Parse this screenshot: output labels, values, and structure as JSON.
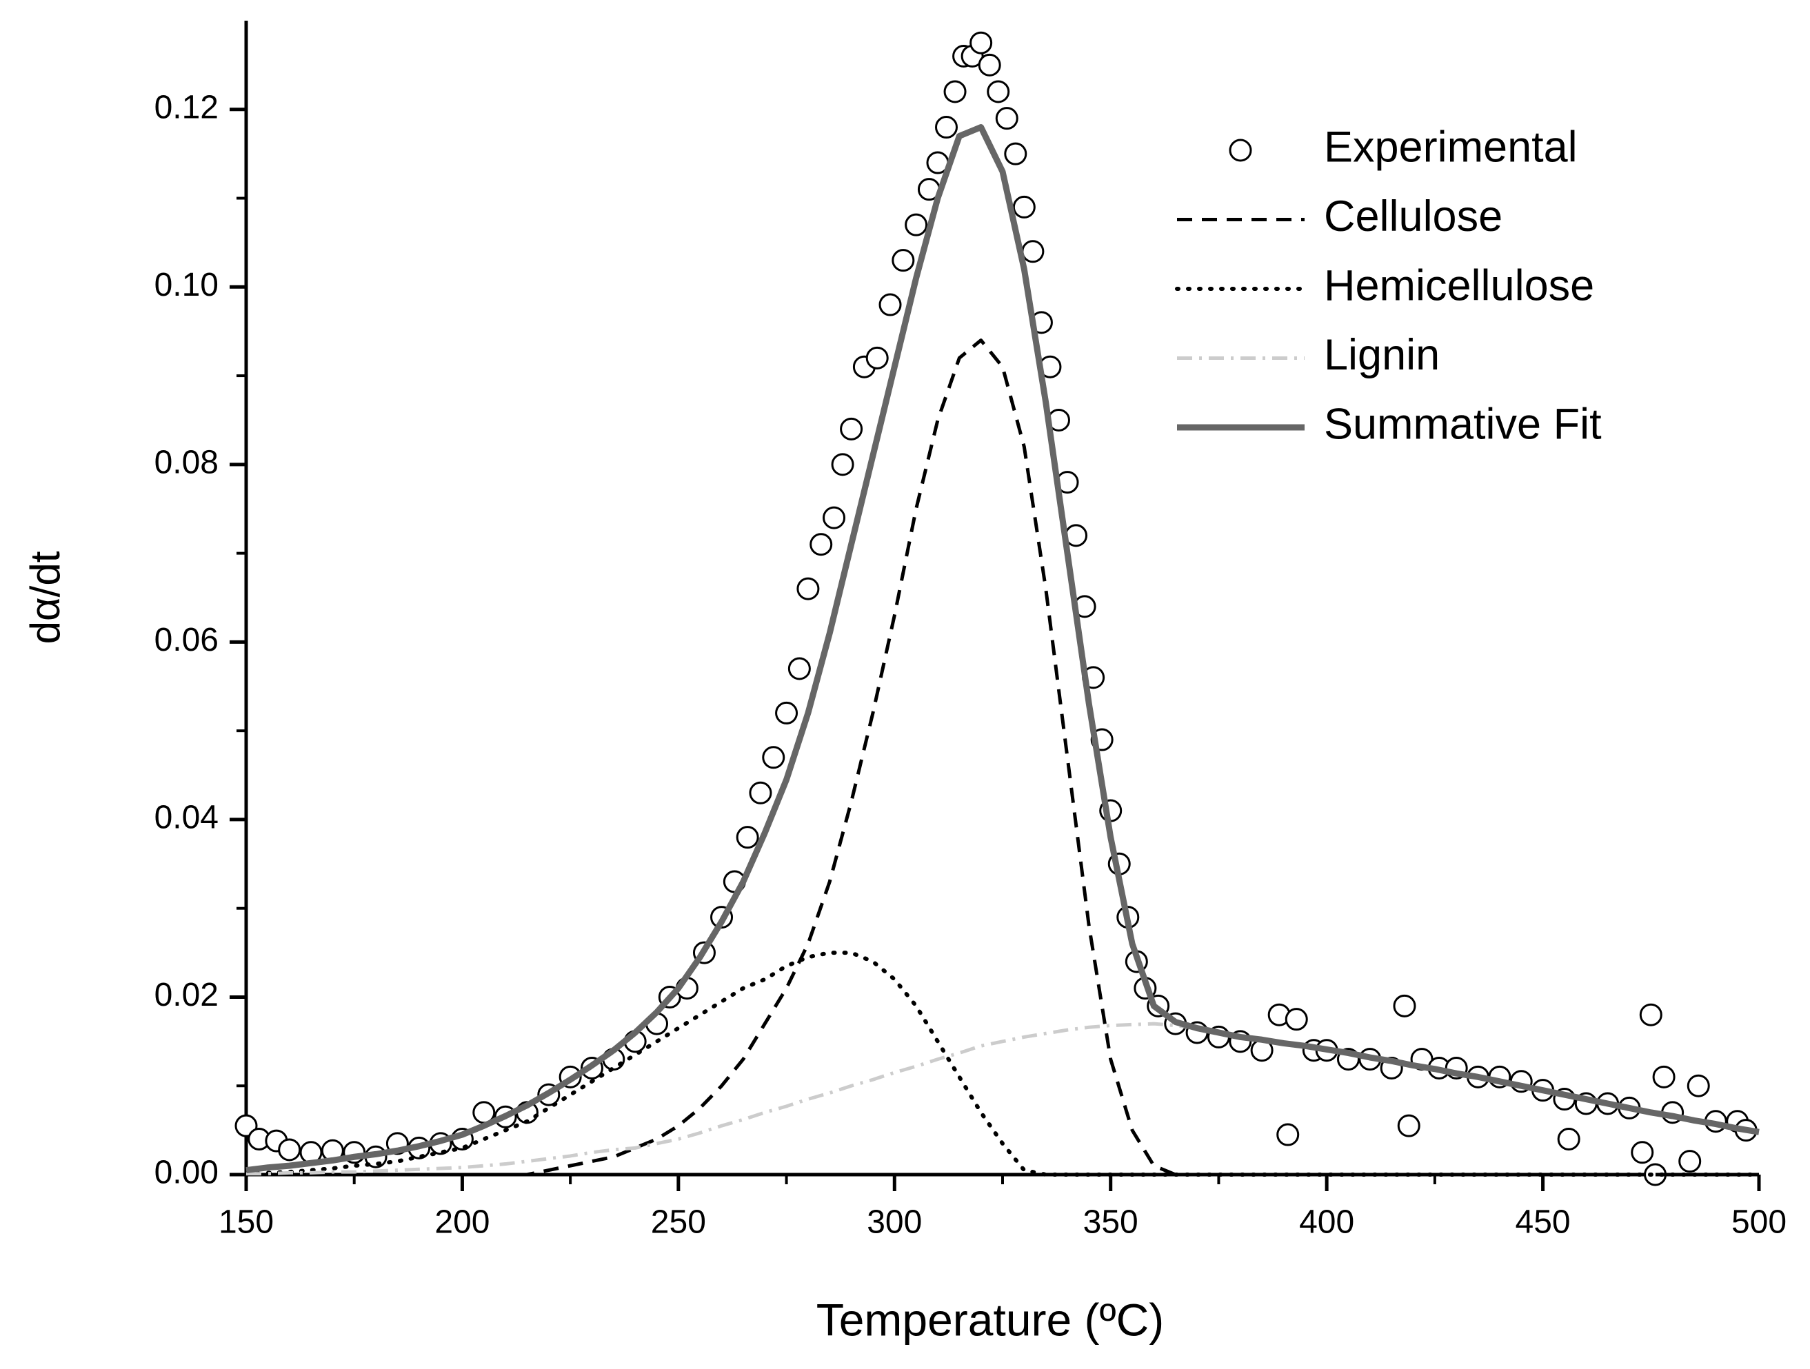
{
  "chart_data": {
    "type": "line",
    "x_label": "Temperature (ºC)",
    "y_label": "dα/dt",
    "xlim": [
      150,
      500
    ],
    "ylim": [
      0,
      0.13
    ],
    "xticks": [
      150,
      200,
      250,
      300,
      350,
      400,
      450,
      500
    ],
    "minor_xticks": [
      175,
      225,
      275,
      325,
      375,
      425,
      475
    ],
    "yticks": [
      {
        "value": 0,
        "label": "0.00"
      },
      0.02,
      0.04,
      0.06,
      0.08,
      {
        "value": 0.1,
        "label": "0.10"
      },
      0.12
    ],
    "minor_yticks": [
      0.01,
      0.03,
      0.05,
      0.07,
      0.09,
      0.11
    ],
    "legend": "upper right",
    "x": [
      150,
      155,
      160,
      165,
      170,
      175,
      180,
      185,
      190,
      195,
      200,
      205,
      210,
      215,
      220,
      225,
      230,
      235,
      240,
      245,
      250,
      255,
      260,
      265,
      270,
      275,
      280,
      285,
      290,
      295,
      300,
      305,
      310,
      315,
      320,
      325,
      330,
      335,
      340,
      345,
      350,
      355,
      360,
      365,
      370,
      375,
      380,
      385,
      390,
      395,
      400,
      405,
      410,
      415,
      420,
      425,
      430,
      435,
      440,
      445,
      450,
      455,
      460,
      465,
      470,
      475,
      480,
      485,
      490,
      495,
      500
    ],
    "series": [
      {
        "name": "Experimental",
        "style": "markers",
        "color": "#000000",
        "x": [
          150,
          153,
          157,
          160,
          165,
          170,
          175,
          180,
          185,
          190,
          195,
          200,
          205,
          210,
          215,
          220,
          225,
          230,
          235,
          240,
          245,
          248,
          252,
          256,
          260,
          263,
          266,
          269,
          272,
          275,
          278,
          280,
          283,
          286,
          288,
          290,
          293,
          296,
          299,
          302,
          305,
          308,
          310,
          312,
          314,
          316,
          318,
          320,
          322,
          324,
          326,
          328,
          330,
          332,
          334,
          336,
          338,
          340,
          342,
          344,
          346,
          348,
          350,
          352,
          354,
          356,
          358,
          361,
          365,
          370,
          375,
          380,
          385,
          389,
          391,
          393,
          397,
          400,
          405,
          410,
          415,
          418,
          419,
          422,
          426,
          430,
          435,
          440,
          445,
          450,
          455,
          456,
          460,
          465,
          470,
          473,
          475,
          476,
          478,
          480,
          484,
          486,
          490,
          495,
          497
        ],
        "values": [
          0.0055,
          0.004,
          0.0038,
          0.0028,
          0.0025,
          0.0027,
          0.0025,
          0.002,
          0.0035,
          0.003,
          0.0035,
          0.004,
          0.007,
          0.0065,
          0.007,
          0.009,
          0.011,
          0.012,
          0.013,
          0.015,
          0.017,
          0.02,
          0.021,
          0.025,
          0.029,
          0.033,
          0.038,
          0.043,
          0.047,
          0.052,
          0.057,
          0.066,
          0.071,
          0.074,
          0.08,
          0.084,
          0.091,
          0.092,
          0.098,
          0.103,
          0.107,
          0.111,
          0.114,
          0.118,
          0.122,
          0.126,
          0.126,
          0.1275,
          0.125,
          0.122,
          0.119,
          0.115,
          0.109,
          0.104,
          0.096,
          0.091,
          0.085,
          0.078,
          0.072,
          0.064,
          0.056,
          0.049,
          0.041,
          0.035,
          0.029,
          0.024,
          0.021,
          0.019,
          0.017,
          0.016,
          0.0155,
          0.015,
          0.014,
          0.018,
          0.0045,
          0.0175,
          0.014,
          0.014,
          0.013,
          0.013,
          0.012,
          0.019,
          0.0055,
          0.013,
          0.012,
          0.012,
          0.011,
          0.011,
          0.0105,
          0.0095,
          0.0085,
          0.004,
          0.008,
          0.008,
          0.0075,
          0.0025,
          0.018,
          0,
          0.011,
          0.007,
          0.0015,
          0.01,
          0.006,
          0.006,
          0.005
        ]
      },
      {
        "name": "Cellulose",
        "style": "dashed",
        "color": "#000000",
        "values": [
          0,
          0,
          0,
          0,
          0,
          0,
          0,
          0,
          0,
          0,
          0,
          0,
          0,
          0,
          0.0005,
          0.001,
          0.0015,
          0.002,
          0.003,
          0.004,
          0.0055,
          0.0075,
          0.01,
          0.013,
          0.017,
          0.021,
          0.026,
          0.033,
          0.042,
          0.052,
          0.063,
          0.075,
          0.085,
          0.092,
          0.094,
          0.091,
          0.082,
          0.066,
          0.047,
          0.028,
          0.013,
          0.005,
          0.001,
          0,
          0,
          0,
          0,
          0,
          0,
          0,
          0,
          0,
          0,
          0,
          0,
          0,
          0,
          0,
          0,
          0,
          0,
          0,
          0,
          0,
          0,
          0,
          0,
          0,
          0,
          0,
          0
        ]
      },
      {
        "name": "Hemicellulose",
        "style": "dotted",
        "color": "#000000",
        "values": [
          0,
          0.0002,
          0.0003,
          0.0005,
          0.0007,
          0.001,
          0.0012,
          0.0015,
          0.002,
          0.0025,
          0.003,
          0.004,
          0.005,
          0.006,
          0.0075,
          0.009,
          0.0105,
          0.012,
          0.0135,
          0.015,
          0.0165,
          0.018,
          0.0195,
          0.021,
          0.022,
          0.0235,
          0.0245,
          0.025,
          0.025,
          0.024,
          0.022,
          0.019,
          0.015,
          0.011,
          0.007,
          0.0035,
          0.0005,
          0,
          0,
          0,
          0,
          0,
          0,
          0,
          0,
          0,
          0,
          0,
          0,
          0,
          0,
          0,
          0,
          0,
          0,
          0,
          0,
          0,
          0,
          0,
          0,
          0,
          0,
          0,
          0,
          0,
          0,
          0,
          0,
          0,
          0
        ]
      },
      {
        "name": "Lignin",
        "style": "dashdot",
        "color": "#cccccc",
        "values": [
          0.0001,
          0.0001,
          0.0002,
          0.0002,
          0.0003,
          0.0003,
          0.0004,
          0.0005,
          0.0006,
          0.0007,
          0.0008,
          0.001,
          0.0012,
          0.0015,
          0.0018,
          0.0021,
          0.0025,
          0.0028,
          0.003,
          0.0035,
          0.004,
          0.0047,
          0.0055,
          0.0062,
          0.007,
          0.0077,
          0.0085,
          0.0092,
          0.01,
          0.0107,
          0.0115,
          0.0122,
          0.013,
          0.0137,
          0.0145,
          0.015,
          0.0155,
          0.0159,
          0.0163,
          0.0166,
          0.0168,
          0.0169,
          0.017,
          0.0168,
          0.0165,
          0.016,
          0.0155,
          0.0152,
          0.0148,
          0.0145,
          0.0141,
          0.0137,
          0.0132,
          0.0128,
          0.0123,
          0.0119,
          0.0114,
          0.011,
          0.0105,
          0.01,
          0.0095,
          0.009,
          0.0085,
          0.008,
          0.0075,
          0.007,
          0.0066,
          0.0061,
          0.0057,
          0.0052,
          0.0048
        ]
      },
      {
        "name": "Summative Fit",
        "style": "solid",
        "color": "#666666",
        "values": [
          0.0005,
          0.0008,
          0.001,
          0.0013,
          0.0016,
          0.002,
          0.0023,
          0.0027,
          0.0032,
          0.0038,
          0.0045,
          0.0055,
          0.0066,
          0.0078,
          0.0092,
          0.0107,
          0.0123,
          0.014,
          0.016,
          0.0183,
          0.021,
          0.0245,
          0.0285,
          0.033,
          0.0385,
          0.0445,
          0.052,
          0.061,
          0.071,
          0.081,
          0.091,
          0.101,
          0.11,
          0.117,
          0.118,
          0.113,
          0.102,
          0.087,
          0.07,
          0.053,
          0.038,
          0.026,
          0.019,
          0.0172,
          0.0165,
          0.016,
          0.0155,
          0.0152,
          0.0148,
          0.0145,
          0.0141,
          0.0137,
          0.0132,
          0.0128,
          0.0123,
          0.0119,
          0.0114,
          0.011,
          0.0105,
          0.01,
          0.0095,
          0.009,
          0.0085,
          0.008,
          0.0075,
          0.007,
          0.0066,
          0.0061,
          0.0057,
          0.0052,
          0.0048
        ]
      }
    ]
  }
}
